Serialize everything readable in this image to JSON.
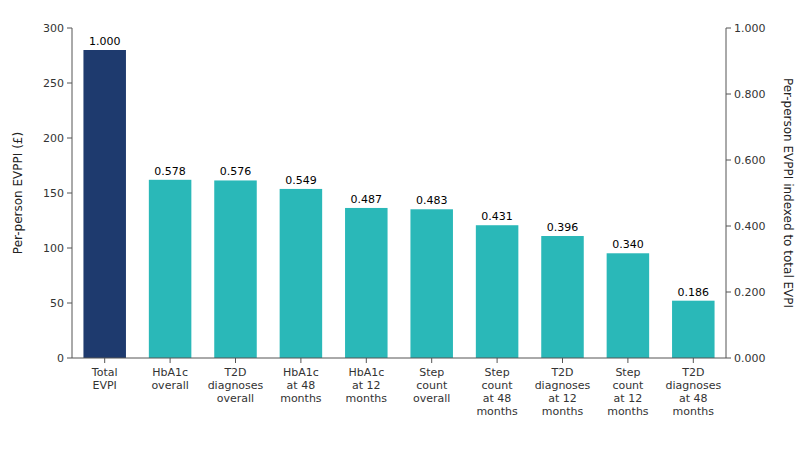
{
  "chart_data": {
    "type": "bar",
    "categories": [
      "Total\nEVPI",
      "HbA1c\noverall",
      "T2D\ndiagnoses\noverall",
      "HbA1c\nat 48\nmonths",
      "HbA1c\nat 12\nmonths",
      "Step\ncount\noverall",
      "Step\ncount\nat 48\nmonths",
      "T2D\ndiagnoses\nat 12\nmonths",
      "Step\ncount\nat 12\nmonths",
      "T2D\ndiagnoses\nat 48\nmonths"
    ],
    "values": [
      280.0,
      162.0,
      161.4,
      153.7,
      136.4,
      135.2,
      120.7,
      110.9,
      95.2,
      52.1
    ],
    "colors": [
      "#1e3a6e",
      "#2ab8b8",
      "#2ab8b8",
      "#2ab8b8",
      "#2ab8b8",
      "#2ab8b8",
      "#2ab8b8",
      "#2ab8b8",
      "#2ab8b8",
      "#2ab8b8"
    ],
    "annotations": [
      "1.000",
      "0.578",
      "0.576",
      "0.549",
      "0.487",
      "0.483",
      "0.431",
      "0.396",
      "0.340",
      "0.186"
    ],
    "ylabel": "Per-person EVPPI (£)",
    "y2label": "Per-person EVPPI indexed to total EVPI",
    "ylim": [
      0,
      300
    ],
    "yticks": [
      0,
      50,
      100,
      150,
      200,
      250,
      300
    ],
    "y2lim": [
      0,
      1.0
    ],
    "y2ticks": [
      {
        "value": 0.0,
        "label": "0.000"
      },
      {
        "value": 0.2,
        "label": "0.200"
      },
      {
        "value": 0.4,
        "label": "0.400"
      },
      {
        "value": 0.6,
        "label": "0.600"
      },
      {
        "value": 0.8,
        "label": "0.800"
      },
      {
        "value": 1.0,
        "label": "1.000"
      }
    ],
    "grid": false
  }
}
